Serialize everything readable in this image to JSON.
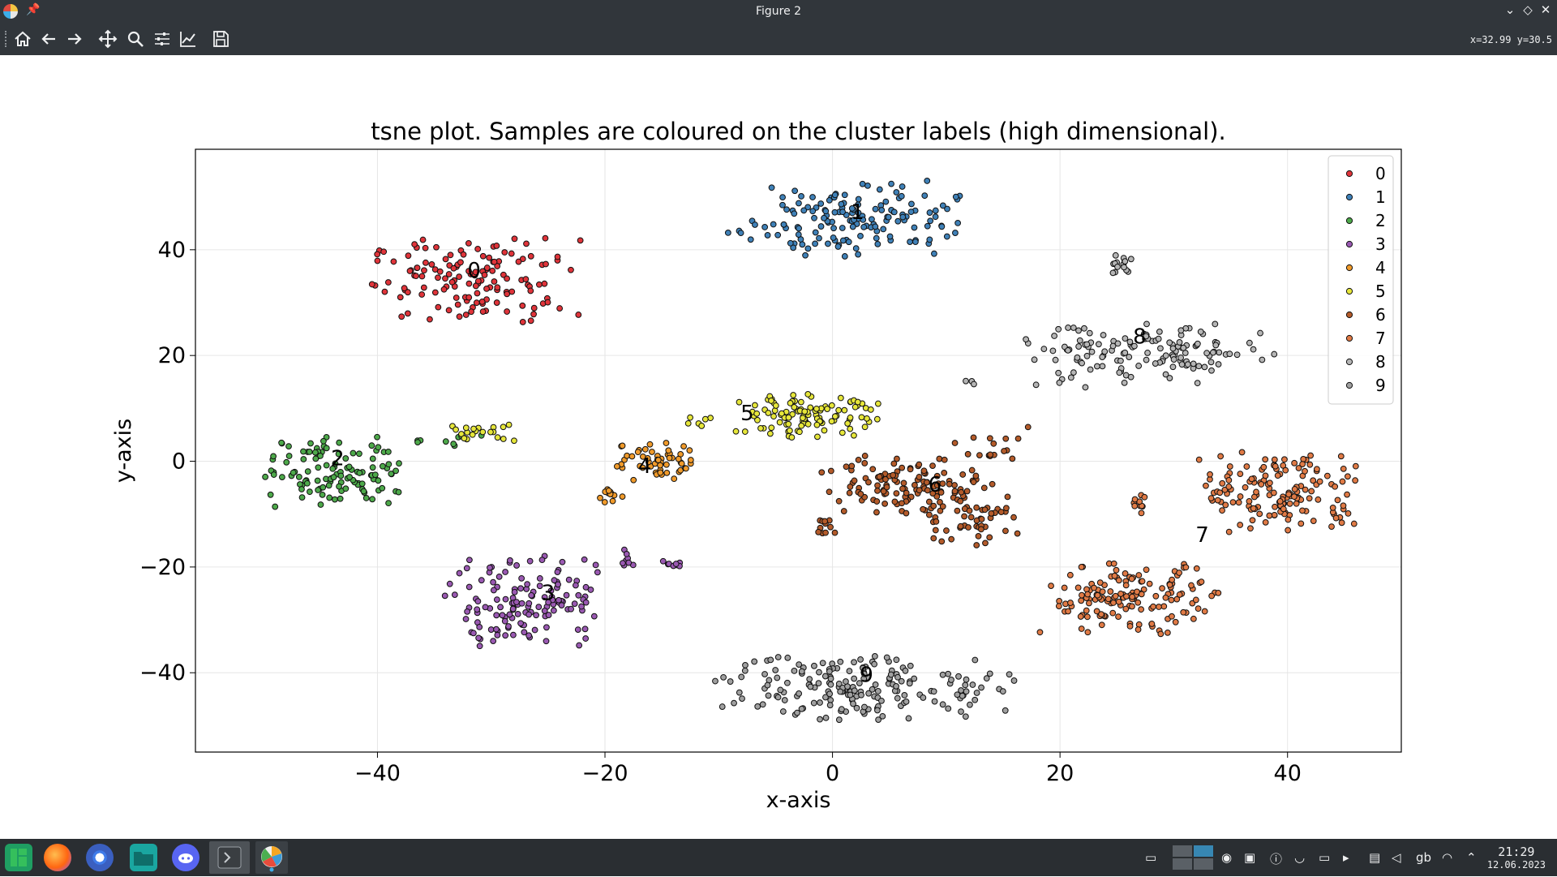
{
  "window": {
    "title": "Figure 2"
  },
  "toolbar": {
    "buttons": [
      "home-icon",
      "back-icon",
      "forward-icon",
      "pan-icon",
      "zoom-icon",
      "subplots-icon",
      "axes-icon",
      "save-icon"
    ],
    "coords": "x=32.99 y=30.5"
  },
  "colors": {
    "chrome": "#31363b",
    "taskbar": "#2a2e32",
    "clusters": [
      "#e0343a",
      "#3f81b8",
      "#4da94a",
      "#9a59b2",
      "#f09a2a",
      "#e6e63a",
      "#b45b2a",
      "#e07a45",
      "#b5b5b5",
      "#a0a0a0"
    ]
  },
  "chart_data": {
    "type": "scatter",
    "title": "tsne plot. Samples are coloured on the cluster labels (high dimensional).",
    "xlabel": "x-axis",
    "ylabel": "y-axis",
    "xlim": [
      -56,
      50
    ],
    "ylim": [
      -55,
      59
    ],
    "xticks": [
      -40,
      -20,
      0,
      20,
      40
    ],
    "yticks": [
      -40,
      -20,
      0,
      20,
      40
    ],
    "xtick_labels": [
      "−40",
      "−20",
      "0",
      "20",
      "40"
    ],
    "ytick_labels": [
      "−40",
      "−20",
      "0",
      "20",
      "40"
    ],
    "grid": true,
    "legend": {
      "position": "top-right",
      "entries": [
        "0",
        "1",
        "2",
        "3",
        "4",
        "5",
        "6",
        "7",
        "8",
        "9"
      ]
    },
    "cluster_label_annotations": [
      {
        "text": "0",
        "x": -31.5,
        "y": 36
      },
      {
        "text": "1",
        "x": 2.2,
        "y": 47
      },
      {
        "text": "2",
        "x": -43.5,
        "y": 0.5
      },
      {
        "text": "3",
        "x": -25,
        "y": -25
      },
      {
        "text": "4",
        "x": -16.5,
        "y": -1
      },
      {
        "text": "5",
        "x": -7.5,
        "y": 9
      },
      {
        "text": "6",
        "x": 9,
        "y": -4.5
      },
      {
        "text": "7",
        "x": 32.5,
        "y": -14
      },
      {
        "text": "8",
        "x": 27,
        "y": 23.5
      },
      {
        "text": "9",
        "x": 3,
        "y": -40.5
      }
    ],
    "series": [
      {
        "name": "0",
        "blobs": [
          {
            "cx": -31.5,
            "cy": 34,
            "sx": 4.6,
            "sy": 4.0,
            "n": 140
          }
        ]
      },
      {
        "name": "1",
        "blobs": [
          {
            "cx": 2,
            "cy": 46,
            "sx": 4.5,
            "sy": 3.5,
            "n": 150
          },
          {
            "cx": -8.5,
            "cy": 43.5,
            "sx": 0.4,
            "sy": 0.3,
            "n": 3
          }
        ]
      },
      {
        "name": "2",
        "blobs": [
          {
            "cx": -44,
            "cy": -2,
            "sx": 3.6,
            "sy": 3.3,
            "n": 120
          },
          {
            "cx": -34,
            "cy": 4,
            "sx": 1.8,
            "sy": 0.9,
            "n": 12
          }
        ]
      },
      {
        "name": "3",
        "blobs": [
          {
            "cx": -27,
            "cy": -27,
            "sx": 3.4,
            "sy": 4.4,
            "n": 140
          },
          {
            "cx": -18,
            "cy": -18,
            "sx": 0.4,
            "sy": 1.0,
            "n": 8
          },
          {
            "cx": -13.5,
            "cy": -19.5,
            "sx": 1.0,
            "sy": 0.4,
            "n": 8
          }
        ]
      },
      {
        "name": "4",
        "blobs": [
          {
            "cx": -15.5,
            "cy": -0.5,
            "sx": 2.0,
            "sy": 2.0,
            "n": 55
          },
          {
            "cx": -19.5,
            "cy": -6.5,
            "sx": 0.5,
            "sy": 0.7,
            "n": 12
          }
        ]
      },
      {
        "name": "5",
        "blobs": [
          {
            "cx": -2.5,
            "cy": 8.5,
            "sx": 3.2,
            "sy": 2.0,
            "n": 110
          },
          {
            "cx": -31,
            "cy": 5.5,
            "sx": 1.6,
            "sy": 0.8,
            "n": 20
          },
          {
            "cx": -11.5,
            "cy": 7.5,
            "sx": 0.7,
            "sy": 1.0,
            "n": 6
          }
        ]
      },
      {
        "name": "6",
        "blobs": [
          {
            "cx": 7,
            "cy": -4.5,
            "sx": 4.2,
            "sy": 2.8,
            "n": 130
          },
          {
            "cx": 12.5,
            "cy": -11,
            "sx": 2.2,
            "sy": 2.4,
            "n": 45
          },
          {
            "cx": 14.5,
            "cy": 3,
            "sx": 2.0,
            "sy": 2.0,
            "n": 16
          },
          {
            "cx": -0.5,
            "cy": -12.5,
            "sx": 0.7,
            "sy": 0.8,
            "n": 12
          }
        ]
      },
      {
        "name": "7",
        "blobs": [
          {
            "cx": 39.5,
            "cy": -6,
            "sx": 3.5,
            "sy": 4.0,
            "n": 150
          },
          {
            "cx": 26,
            "cy": -26,
            "sx": 3.7,
            "sy": 3.2,
            "n": 150
          },
          {
            "cx": 27,
            "cy": -8,
            "sx": 0.4,
            "sy": 0.9,
            "n": 10
          }
        ]
      },
      {
        "name": "8",
        "blobs": [
          {
            "cx": 27,
            "cy": 20,
            "sx": 5.5,
            "sy": 3.0,
            "n": 140
          },
          {
            "cx": 25.5,
            "cy": 37.5,
            "sx": 0.8,
            "sy": 1.0,
            "n": 15
          },
          {
            "cx": 12,
            "cy": 15,
            "sx": 0.3,
            "sy": 0.2,
            "n": 3
          }
        ]
      },
      {
        "name": "9",
        "blobs": [
          {
            "cx": 3,
            "cy": -42.5,
            "sx": 6.5,
            "sy": 3.2,
            "n": 190
          }
        ]
      }
    ]
  },
  "taskbar": {
    "apps": [
      "manjaro-icon",
      "firefox-icon",
      "chromium-icon",
      "files-icon",
      "discord-icon",
      "terminal-icon",
      "matplotlib-icon"
    ],
    "tray": [
      "desktop-icon",
      "pager-icon",
      "discord-tray-icon",
      "network-icon",
      "update-icon",
      "shield-icon",
      "display-icon",
      "terminal-tray-icon",
      "clipboard-icon",
      "volume-icon",
      "keyboard-layout-icon",
      "wifi-icon",
      "expand-icon"
    ],
    "keyboard_layout": "gb",
    "time": "21:29",
    "date": "12.06.2023"
  }
}
